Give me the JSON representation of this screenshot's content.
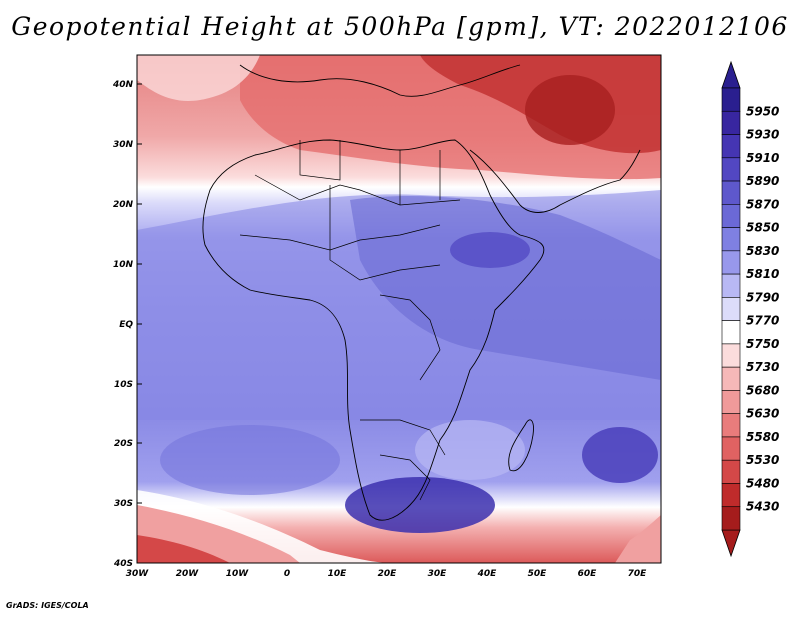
{
  "title": "Geopotential Height at 500hPa [gpm], VT: 2022012106",
  "credit": "GrADS: IGES/COLA",
  "lat_labels": [
    "40N",
    "30N",
    "20N",
    "10N",
    "EQ",
    "10S",
    "20S",
    "30S",
    "40S"
  ],
  "lon_labels": [
    "30W",
    "20W",
    "10W",
    "0",
    "10E",
    "20E",
    "30E",
    "40E",
    "50E",
    "60E",
    "70E"
  ],
  "colorbar": {
    "labels": [
      "5950",
      "5930",
      "5910",
      "5890",
      "5870",
      "5850",
      "5830",
      "5810",
      "5790",
      "5770",
      "5750",
      "5730",
      "5680",
      "5630",
      "5580",
      "5530",
      "5480",
      "5430"
    ],
    "colors": [
      "#2a1f8f",
      "#3826a0",
      "#4535b3",
      "#5247c2",
      "#5e58cc",
      "#6b69d6",
      "#7f80e2",
      "#9898ec",
      "#b8b8f4",
      "#dcdcfa",
      "#ffffff",
      "#fbdcdc",
      "#f6b8b8",
      "#f09a9a",
      "#e97c7c",
      "#e06262",
      "#d44848",
      "#bf2b2b",
      "#a51c1c"
    ]
  },
  "field_colors": {
    "deep_red": "#b42323",
    "red": "#dc5858",
    "light_red": "#f0a0a0",
    "pale_red": "#fbdada",
    "white": "#ffffff",
    "pale_blue": "#dadaf8",
    "light_blue": "#9c9cee",
    "blue": "#7f7fe2",
    "mid_blue": "#6666d4",
    "dark_blue": "#4b3fbb"
  }
}
